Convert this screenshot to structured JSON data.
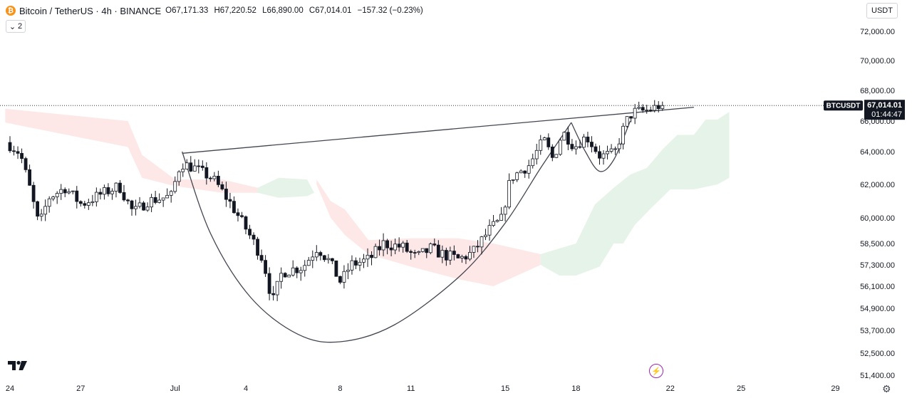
{
  "header": {
    "symbol": "Bitcoin / TetherUS · 4h · BINANCE",
    "open": "O67,171.33",
    "high": "H67,220.52",
    "low": "L66,890.00",
    "close": "C67,014.01",
    "change": "−157.32 (−0.23%)",
    "indicator_count": "2"
  },
  "currency_label": "USDT",
  "price_tag": {
    "symbol": "BTCUSDT",
    "price": "67,014.01",
    "countdown": "01:44:47"
  },
  "colors": {
    "candle_up": "#ffffff",
    "candle_down": "#131722",
    "bull_cloud": "#e6f3e9",
    "bear_cloud": "#fde7e7",
    "line": "#131722"
  },
  "chart_data": {
    "type": "candlestick",
    "title": "",
    "y_ticks": [
      {
        "label": "72,000.00",
        "value": 72000
      },
      {
        "label": "70,000.00",
        "value": 70000
      },
      {
        "label": "68,000.00",
        "value": 68000
      },
      {
        "label": "66,000.00",
        "value": 66000
      },
      {
        "label": "64,000.00",
        "value": 64000
      },
      {
        "label": "62,000.00",
        "value": 62000
      },
      {
        "label": "60,000.00",
        "value": 60000
      },
      {
        "label": "58,500.00",
        "value": 58500
      },
      {
        "label": "57,300.00",
        "value": 57300
      },
      {
        "label": "56,100.00",
        "value": 56100
      },
      {
        "label": "54,900.00",
        "value": 54900
      },
      {
        "label": "53,700.00",
        "value": 53700
      },
      {
        "label": "52,500.00",
        "value": 52500
      },
      {
        "label": "51,400.00",
        "value": 51400
      }
    ],
    "x_ticks": [
      {
        "label": "24",
        "day": 0
      },
      {
        "label": "27",
        "day": 3
      },
      {
        "label": "Jul",
        "day": 7
      },
      {
        "label": "4",
        "day": 10
      },
      {
        "label": "8",
        "day": 14
      },
      {
        "label": "11",
        "day": 17
      },
      {
        "label": "15",
        "day": 21
      },
      {
        "label": "18",
        "day": 24
      },
      {
        "label": "22",
        "day": 28
      },
      {
        "label": "25",
        "day": 31
      },
      {
        "label": "29",
        "day": 35
      }
    ],
    "last_price": 67014.01,
    "anchors": [
      {
        "day": 0.0,
        "price": 64600
      },
      {
        "day": 0.6,
        "price": 63900
      },
      {
        "day": 1.0,
        "price": 61800
      },
      {
        "day": 1.4,
        "price": 59500
      },
      {
        "day": 1.8,
        "price": 61200
      },
      {
        "day": 2.5,
        "price": 61800
      },
      {
        "day": 3.2,
        "price": 60800
      },
      {
        "day": 4.0,
        "price": 61400
      },
      {
        "day": 4.8,
        "price": 61900
      },
      {
        "day": 5.4,
        "price": 60300
      },
      {
        "day": 6.0,
        "price": 61000
      },
      {
        "day": 7.0,
        "price": 61300
      },
      {
        "day": 7.4,
        "price": 63300
      },
      {
        "day": 8.0,
        "price": 63000
      },
      {
        "day": 8.8,
        "price": 62300
      },
      {
        "day": 9.5,
        "price": 60900
      },
      {
        "day": 10.2,
        "price": 59300
      },
      {
        "day": 10.9,
        "price": 57600
      },
      {
        "day": 11.3,
        "price": 55200
      },
      {
        "day": 11.7,
        "price": 56900
      },
      {
        "day": 12.6,
        "price": 57200
      },
      {
        "day": 13.2,
        "price": 58300
      },
      {
        "day": 13.7,
        "price": 57500
      },
      {
        "day": 14.2,
        "price": 56300
      },
      {
        "day": 14.6,
        "price": 57300
      },
      {
        "day": 15.4,
        "price": 57600
      },
      {
        "day": 16.0,
        "price": 58500
      },
      {
        "day": 16.8,
        "price": 58300
      },
      {
        "day": 17.4,
        "price": 57700
      },
      {
        "day": 18.0,
        "price": 58200
      },
      {
        "day": 18.5,
        "price": 57900
      },
      {
        "day": 19.2,
        "price": 57600
      },
      {
        "day": 19.8,
        "price": 58000
      },
      {
        "day": 20.5,
        "price": 59300
      },
      {
        "day": 21.0,
        "price": 59900
      },
      {
        "day": 21.4,
        "price": 62400
      },
      {
        "day": 22.2,
        "price": 63200
      },
      {
        "day": 22.8,
        "price": 64800
      },
      {
        "day": 23.2,
        "price": 63500
      },
      {
        "day": 23.6,
        "price": 65300
      },
      {
        "day": 24.1,
        "price": 64300
      },
      {
        "day": 24.6,
        "price": 65000
      },
      {
        "day": 25.2,
        "price": 63700
      },
      {
        "day": 25.8,
        "price": 63900
      },
      {
        "day": 26.3,
        "price": 66000
      },
      {
        "day": 26.6,
        "price": 66600
      },
      {
        "day": 27.2,
        "price": 66700
      },
      {
        "day": 27.7,
        "price": 67000
      }
    ],
    "cup_curve": [
      {
        "day": 7.3,
        "price": 64000
      },
      {
        "day": 8.5,
        "price": 59100
      },
      {
        "day": 10.2,
        "price": 55500
      },
      {
        "day": 12.2,
        "price": 53500
      },
      {
        "day": 14.0,
        "price": 53100
      },
      {
        "day": 16.3,
        "price": 54000
      },
      {
        "day": 19.1,
        "price": 56700
      },
      {
        "day": 21.0,
        "price": 59700
      },
      {
        "day": 22.5,
        "price": 63000
      },
      {
        "day": 23.8,
        "price": 65900
      }
    ],
    "handle_curve": [
      {
        "day": 23.8,
        "price": 65900
      },
      {
        "day": 24.4,
        "price": 64000
      },
      {
        "day": 25.0,
        "price": 62800
      },
      {
        "day": 25.6,
        "price": 63500
      },
      {
        "day": 26.3,
        "price": 66000
      }
    ],
    "resistance_line": [
      {
        "day": 7.3,
        "price": 63900
      },
      {
        "day": 29.0,
        "price": 66900
      }
    ],
    "bear_cloud": {
      "top": [
        {
          "day": -0.2,
          "price": 66800
        },
        {
          "day": 5.0,
          "price": 66000
        },
        {
          "day": 5.6,
          "price": 63800
        },
        {
          "day": 7.0,
          "price": 62300
        },
        {
          "day": 9.0,
          "price": 62300
        },
        {
          "day": 10.5,
          "price": 61800
        }
      ],
      "bottom": [
        {
          "day": -0.2,
          "price": 65900
        },
        {
          "day": 5.0,
          "price": 64300
        },
        {
          "day": 5.6,
          "price": 62400
        },
        {
          "day": 7.0,
          "price": 61900
        },
        {
          "day": 9.0,
          "price": 61500
        },
        {
          "day": 10.5,
          "price": 61500
        }
      ]
    },
    "bear_cloud_2": {
      "top": [
        {
          "day": 13.0,
          "price": 62300
        },
        {
          "day": 13.6,
          "price": 61000
        },
        {
          "day": 14.2,
          "price": 60500
        },
        {
          "day": 15.2,
          "price": 58700
        },
        {
          "day": 17.0,
          "price": 58800
        },
        {
          "day": 19.0,
          "price": 58800
        },
        {
          "day": 20.5,
          "price": 58500
        },
        {
          "day": 22.5,
          "price": 57900
        }
      ],
      "bottom": [
        {
          "day": 13.0,
          "price": 62000
        },
        {
          "day": 13.6,
          "price": 60000
        },
        {
          "day": 14.2,
          "price": 59000
        },
        {
          "day": 15.2,
          "price": 57900
        },
        {
          "day": 17.0,
          "price": 57200
        },
        {
          "day": 19.0,
          "price": 56500
        },
        {
          "day": 20.5,
          "price": 56100
        },
        {
          "day": 22.5,
          "price": 57300
        }
      ]
    },
    "bull_cloud": {
      "top": [
        {
          "day": 10.5,
          "price": 61800
        },
        {
          "day": 11.4,
          "price": 62400
        },
        {
          "day": 12.6,
          "price": 62300
        },
        {
          "day": 12.9,
          "price": 61500
        }
      ],
      "bottom": [
        {
          "day": 10.5,
          "price": 61500
        },
        {
          "day": 11.4,
          "price": 61200
        },
        {
          "day": 12.6,
          "price": 61300
        },
        {
          "day": 12.9,
          "price": 61500
        }
      ]
    },
    "bull_cloud_2": {
      "top": [
        {
          "day": 22.5,
          "price": 57900
        },
        {
          "day": 24.0,
          "price": 58500
        },
        {
          "day": 24.8,
          "price": 60800
        },
        {
          "day": 25.6,
          "price": 61800
        },
        {
          "day": 26.3,
          "price": 62600
        },
        {
          "day": 27.0,
          "price": 63000
        },
        {
          "day": 27.7,
          "price": 64200
        },
        {
          "day": 28.3,
          "price": 65100
        },
        {
          "day": 29.0,
          "price": 65100
        },
        {
          "day": 29.5,
          "price": 66100
        },
        {
          "day": 30.0,
          "price": 66100
        },
        {
          "day": 30.5,
          "price": 66600
        }
      ],
      "bottom": [
        {
          "day": 22.5,
          "price": 57300
        },
        {
          "day": 23.3,
          "price": 56700
        },
        {
          "day": 24.0,
          "price": 56700
        },
        {
          "day": 25.0,
          "price": 57200
        },
        {
          "day": 25.6,
          "price": 58500
        },
        {
          "day": 26.0,
          "price": 58500
        },
        {
          "day": 26.5,
          "price": 59600
        },
        {
          "day": 27.2,
          "price": 60600
        },
        {
          "day": 28.0,
          "price": 61700
        },
        {
          "day": 29.0,
          "price": 61700
        },
        {
          "day": 30.0,
          "price": 62000
        },
        {
          "day": 30.5,
          "price": 62400
        }
      ]
    }
  }
}
